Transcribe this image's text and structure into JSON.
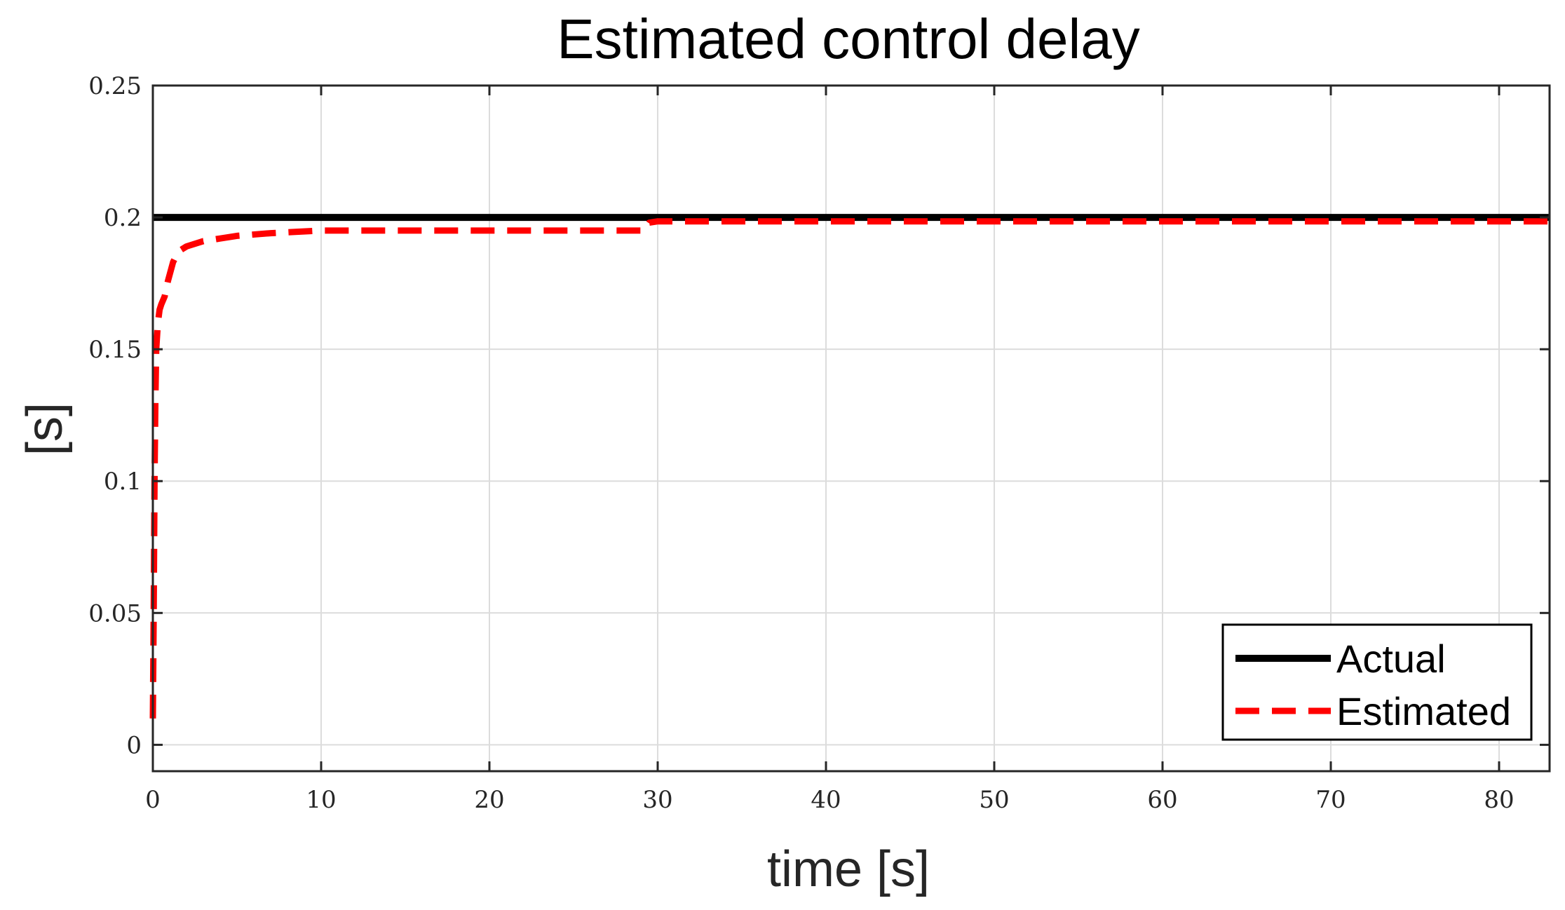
{
  "chart_data": {
    "type": "line",
    "title": "Estimated control delay",
    "xlabel": "time [s]",
    "ylabel": "[s]",
    "xlim": [
      0,
      83
    ],
    "ylim": [
      -0.01,
      0.25
    ],
    "xticks": [
      0,
      10,
      20,
      30,
      40,
      50,
      60,
      70,
      80
    ],
    "xtick_labels": [
      "0",
      "10",
      "20",
      "30",
      "40",
      "50",
      "60",
      "70",
      "80"
    ],
    "yticks": [
      0,
      0.05,
      0.1,
      0.15,
      0.2,
      0.25
    ],
    "ytick_labels": [
      "0",
      "0.05",
      "0.1",
      "0.15",
      "0.2",
      "0.25"
    ],
    "grid": true,
    "legend_position": "bottom-right",
    "series": [
      {
        "name": "Actual",
        "color": "#000000",
        "style": "solid",
        "x": [
          0,
          83
        ],
        "y": [
          0.2,
          0.2
        ]
      },
      {
        "name": "Estimated",
        "color": "#ff0000",
        "style": "dashed",
        "x": [
          0,
          0.05,
          0.1,
          0.15,
          0.2,
          0.3,
          0.4,
          0.5,
          0.7,
          0.9,
          1.2,
          1.5,
          2,
          3,
          4,
          5,
          7,
          10,
          15,
          20,
          25,
          29.2,
          29.5,
          30,
          40,
          50,
          60,
          70,
          83
        ],
        "y": [
          0.01,
          0.05,
          0.1,
          0.13,
          0.15,
          0.16,
          0.165,
          0.167,
          0.17,
          0.176,
          0.183,
          0.187,
          0.189,
          0.191,
          0.192,
          0.193,
          0.194,
          0.195,
          0.195,
          0.195,
          0.195,
          0.195,
          0.198,
          0.1985,
          0.1985,
          0.1985,
          0.1985,
          0.1985,
          0.1985
        ]
      }
    ]
  }
}
